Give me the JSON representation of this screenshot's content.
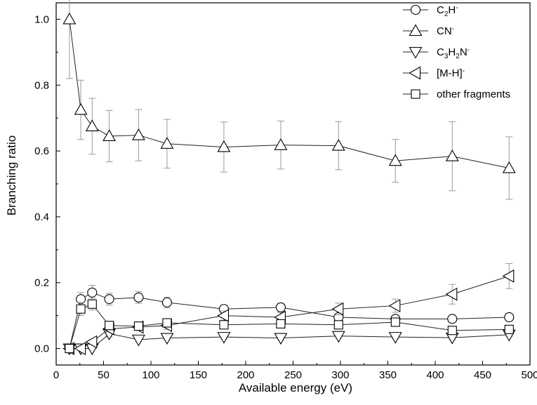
{
  "chart_data": {
    "type": "line",
    "title": "",
    "xlabel": "Available energy (eV)",
    "ylabel": "Branching ratio",
    "xlim": [
      0,
      500
    ],
    "ylim": [
      -0.05,
      1.05
    ],
    "xticks": [
      0,
      50,
      100,
      150,
      200,
      250,
      300,
      350,
      400,
      450,
      500
    ],
    "yticks": [
      0.0,
      0.2,
      0.4,
      0.6,
      0.8,
      1.0
    ],
    "xtick_labels": [
      "0",
      "50",
      "100",
      "150",
      "200",
      "250",
      "300",
      "350",
      "400",
      "450",
      "500"
    ],
    "ytick_labels": [
      "0.0",
      "0.2",
      "0.4",
      "0.6",
      "0.8",
      "1.0"
    ],
    "x": [
      14,
      26,
      38,
      56,
      87,
      117,
      177,
      237,
      298,
      358,
      418,
      478
    ],
    "legend_position": "top-right",
    "series": [
      {
        "name": "C2H-",
        "label_parts": [
          [
            "C",
            "n"
          ],
          [
            "2",
            "sub"
          ],
          [
            "H",
            "n"
          ],
          [
            "-",
            "sup"
          ]
        ],
        "marker": "circle",
        "values": [
          0.0,
          0.15,
          0.17,
          0.15,
          0.155,
          0.14,
          0.12,
          0.125,
          0.095,
          0.09,
          0.09,
          0.095
        ],
        "errors": [
          0,
          0.02,
          0.022,
          0.018,
          0.018,
          0.016,
          0.012,
          0.012,
          0.01,
          0.01,
          0.01,
          0.01
        ]
      },
      {
        "name": "CN-",
        "label_parts": [
          [
            "CN",
            "n"
          ],
          [
            "-",
            "sup"
          ]
        ],
        "marker": "triangle-up",
        "values": [
          1.0,
          0.725,
          0.675,
          0.645,
          0.648,
          0.622,
          0.612,
          0.618,
          0.616,
          0.57,
          0.584,
          0.548
        ],
        "errors": [
          0.18,
          0.09,
          0.085,
          0.078,
          0.078,
          0.074,
          0.076,
          0.073,
          0.073,
          0.065,
          0.105,
          0.095
        ]
      },
      {
        "name": "C3H2N-",
        "label_parts": [
          [
            "C",
            "n"
          ],
          [
            "3",
            "sub"
          ],
          [
            "H",
            "n"
          ],
          [
            "2",
            "sub"
          ],
          [
            "N",
            "n"
          ],
          [
            "-",
            "sup"
          ]
        ],
        "marker": "triangle-down",
        "values": [
          0.0,
          0.0,
          0.0,
          0.045,
          0.027,
          0.032,
          0.035,
          0.032,
          0.038,
          0.035,
          0.033,
          0.042
        ],
        "errors": [
          0,
          0,
          0,
          0.01,
          0.006,
          0.006,
          0.006,
          0.006,
          0.006,
          0.006,
          0.006,
          0.006
        ]
      },
      {
        "name": "[M-H]-",
        "label_parts": [
          [
            "[M-H]",
            "n"
          ],
          [
            "-",
            "sup"
          ]
        ],
        "marker": "triangle-left",
        "values": [
          0.0,
          0.0,
          0.02,
          0.06,
          0.065,
          0.07,
          0.1,
          0.095,
          0.12,
          0.13,
          0.165,
          0.22
        ],
        "errors": [
          0,
          0,
          0.006,
          0.01,
          0.01,
          0.012,
          0.014,
          0.014,
          0.018,
          0.02,
          0.03,
          0.038
        ]
      },
      {
        "name": "other fragments",
        "label_parts": [
          [
            "other fragments",
            "n"
          ]
        ],
        "marker": "square",
        "values": [
          0.0,
          0.12,
          0.135,
          0.07,
          0.068,
          0.078,
          0.072,
          0.075,
          0.072,
          0.08,
          0.055,
          0.058
        ],
        "errors": [
          0,
          0.02,
          0.018,
          0.012,
          0.01,
          0.01,
          0.01,
          0.01,
          0.01,
          0.01,
          0.01,
          0.01
        ]
      }
    ]
  }
}
